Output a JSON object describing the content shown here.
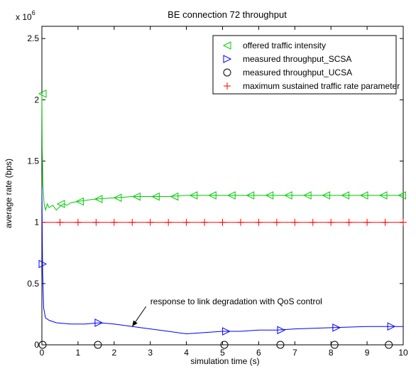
{
  "chart_data": {
    "type": "line",
    "title": "BE connection 72 throughput",
    "xlabel": "simulation time (s)",
    "ylabel": "average rate (bps)",
    "y_multiplier_base": "x 10",
    "y_multiplier_exp": "6",
    "xlim": [
      0,
      10
    ],
    "ylim": [
      0,
      2.6
    ],
    "x_ticks": [
      0,
      1,
      2,
      3,
      4,
      5,
      6,
      7,
      8,
      9,
      10
    ],
    "y_ticks": [
      0,
      0.5,
      1,
      1.5,
      2,
      2.5
    ],
    "x_tick_labels": [
      "0",
      "1",
      "2",
      "3",
      "4",
      "5",
      "6",
      "7",
      "8",
      "9",
      "10"
    ],
    "y_tick_labels": [
      "0",
      "0.5",
      "1",
      "1.5",
      "2",
      "2.5"
    ],
    "grid": false,
    "legend_position": "top-right",
    "series": [
      {
        "name": "offered traffic intensity",
        "color": "#00cc00",
        "marker": "triangle-left",
        "line": true,
        "x": [
          0,
          0.01,
          0.03,
          0.06,
          0.1,
          0.15,
          0.2,
          0.3,
          0.4,
          0.5,
          0.6,
          0.7,
          0.8,
          1.0,
          1.2,
          1.5,
          2.0,
          2.5,
          3.0,
          3.5,
          4.0,
          5.0,
          6.0,
          7.0,
          8.0,
          9.0,
          10.0
        ],
        "y": [
          2.05,
          1.6,
          1.3,
          1.15,
          1.1,
          1.15,
          1.12,
          1.14,
          1.1,
          1.13,
          1.15,
          1.14,
          1.16,
          1.17,
          1.18,
          1.19,
          1.2,
          1.21,
          1.21,
          1.21,
          1.22,
          1.22,
          1.22,
          1.22,
          1.22,
          1.22,
          1.22
        ],
        "marker_x": [
          0.02,
          0.53,
          1.05,
          1.57,
          2.1,
          2.62,
          3.15,
          3.67,
          4.2,
          4.72,
          5.25,
          5.77,
          6.3,
          6.82,
          7.35,
          7.87,
          8.4,
          8.92,
          9.45,
          9.97
        ],
        "marker_y": [
          2.05,
          1.15,
          1.17,
          1.19,
          1.2,
          1.21,
          1.21,
          1.21,
          1.22,
          1.22,
          1.22,
          1.22,
          1.22,
          1.22,
          1.22,
          1.22,
          1.22,
          1.22,
          1.22,
          1.22
        ]
      },
      {
        "name": "measured throughput_SCSA",
        "color": "#0000ff",
        "marker": "triangle-right",
        "line": true,
        "x": [
          0,
          0.02,
          0.05,
          0.1,
          0.2,
          0.4,
          0.8,
          1.2,
          1.6,
          2.0,
          2.5,
          3.0,
          3.5,
          4.0,
          4.5,
          5.0,
          5.5,
          6.0,
          6.5,
          7.0,
          8.0,
          9.0,
          10.0
        ],
        "y": [
          1.28,
          0.6,
          0.3,
          0.22,
          0.2,
          0.18,
          0.17,
          0.17,
          0.18,
          0.17,
          0.15,
          0.13,
          0.11,
          0.09,
          0.1,
          0.11,
          0.11,
          0.12,
          0.12,
          0.13,
          0.14,
          0.15,
          0.15
        ],
        "marker_x": [
          0.02,
          1.57,
          5.1,
          6.62,
          8.15,
          9.67
        ],
        "marker_y": [
          0.66,
          0.18,
          0.11,
          0.12,
          0.14,
          0.15
        ]
      },
      {
        "name": "measured throughput_UCSA",
        "color": "#000000",
        "marker": "circle",
        "line": false,
        "x": [
          0.02,
          1.55,
          5.05,
          6.6,
          8.1,
          9.6
        ],
        "y": [
          0,
          0,
          0,
          0,
          0,
          0
        ]
      },
      {
        "name": "maximum sustained traffic rate parameter",
        "color": "#ff0000",
        "marker": "plus",
        "line": true,
        "x": [
          0,
          10
        ],
        "y": [
          1,
          1
        ],
        "marker_x": [
          0.5,
          1.0,
          1.5,
          2.0,
          2.5,
          3.0,
          3.5,
          4.0,
          4.5,
          5.0,
          5.5,
          6.0,
          6.5,
          7.0,
          7.5,
          8.0,
          8.5,
          9.0,
          9.5,
          10.0
        ],
        "marker_y": [
          1,
          1,
          1,
          1,
          1,
          1,
          1,
          1,
          1,
          1,
          1,
          1,
          1,
          1,
          1,
          1,
          1,
          1,
          1,
          1
        ]
      }
    ],
    "annotations": [
      {
        "text": "response to link degradation with QoS control",
        "arrow_to": [
          2.5,
          0.15
        ],
        "text_at": [
          3.0,
          0.33
        ]
      }
    ]
  }
}
